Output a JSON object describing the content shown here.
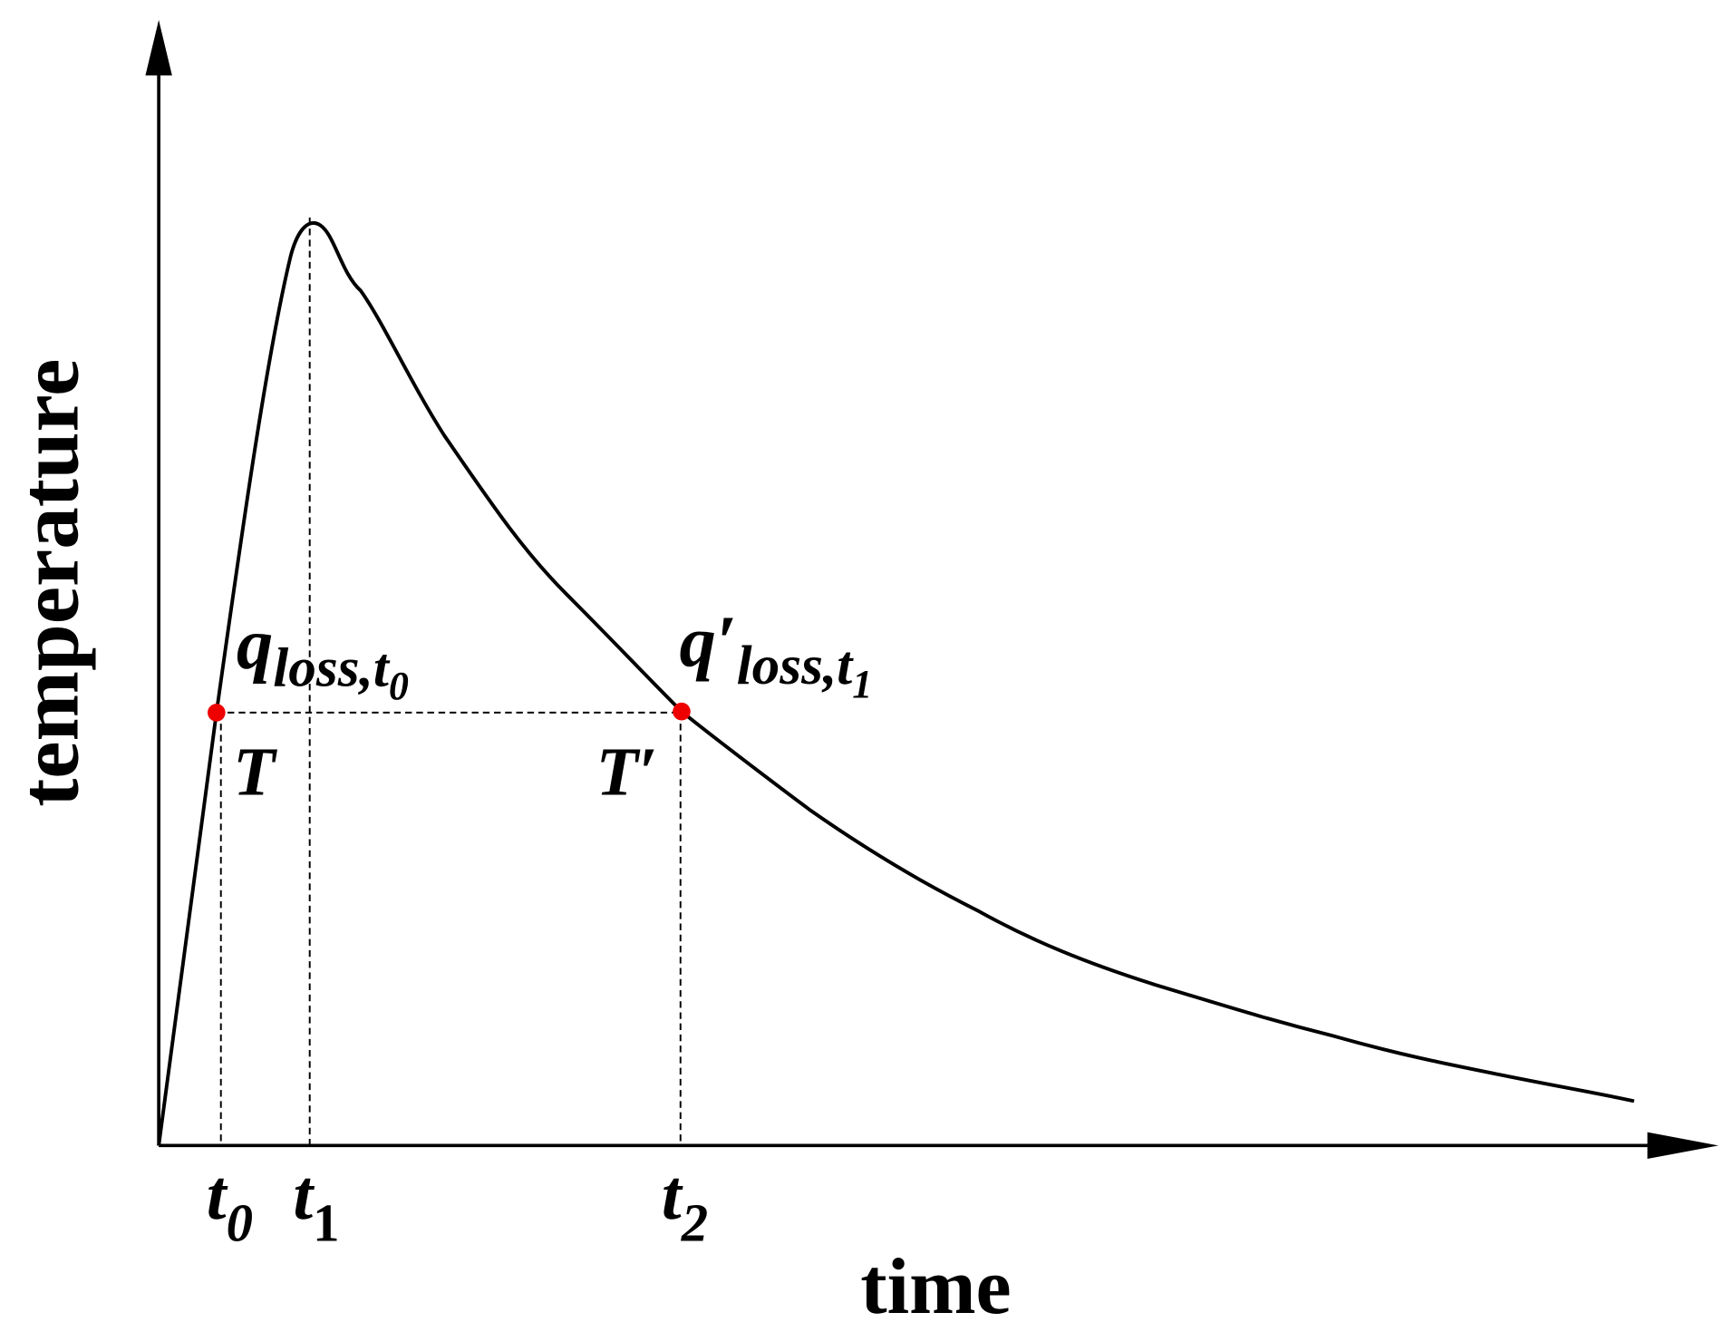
{
  "axes": {
    "x_label": "time",
    "y_label": "temperature"
  },
  "time_marks": [
    {
      "base": "t",
      "sub": "0"
    },
    {
      "base": "t",
      "sub": "1"
    },
    {
      "base": "t",
      "sub": "2"
    }
  ],
  "points": [
    {
      "label": "T",
      "annotation": {
        "base": "q",
        "sub": "loss,t",
        "subsub": "0"
      }
    },
    {
      "label": "T′",
      "annotation": {
        "base": "q′",
        "sub": "loss,t",
        "subsub": "1"
      }
    }
  ]
}
